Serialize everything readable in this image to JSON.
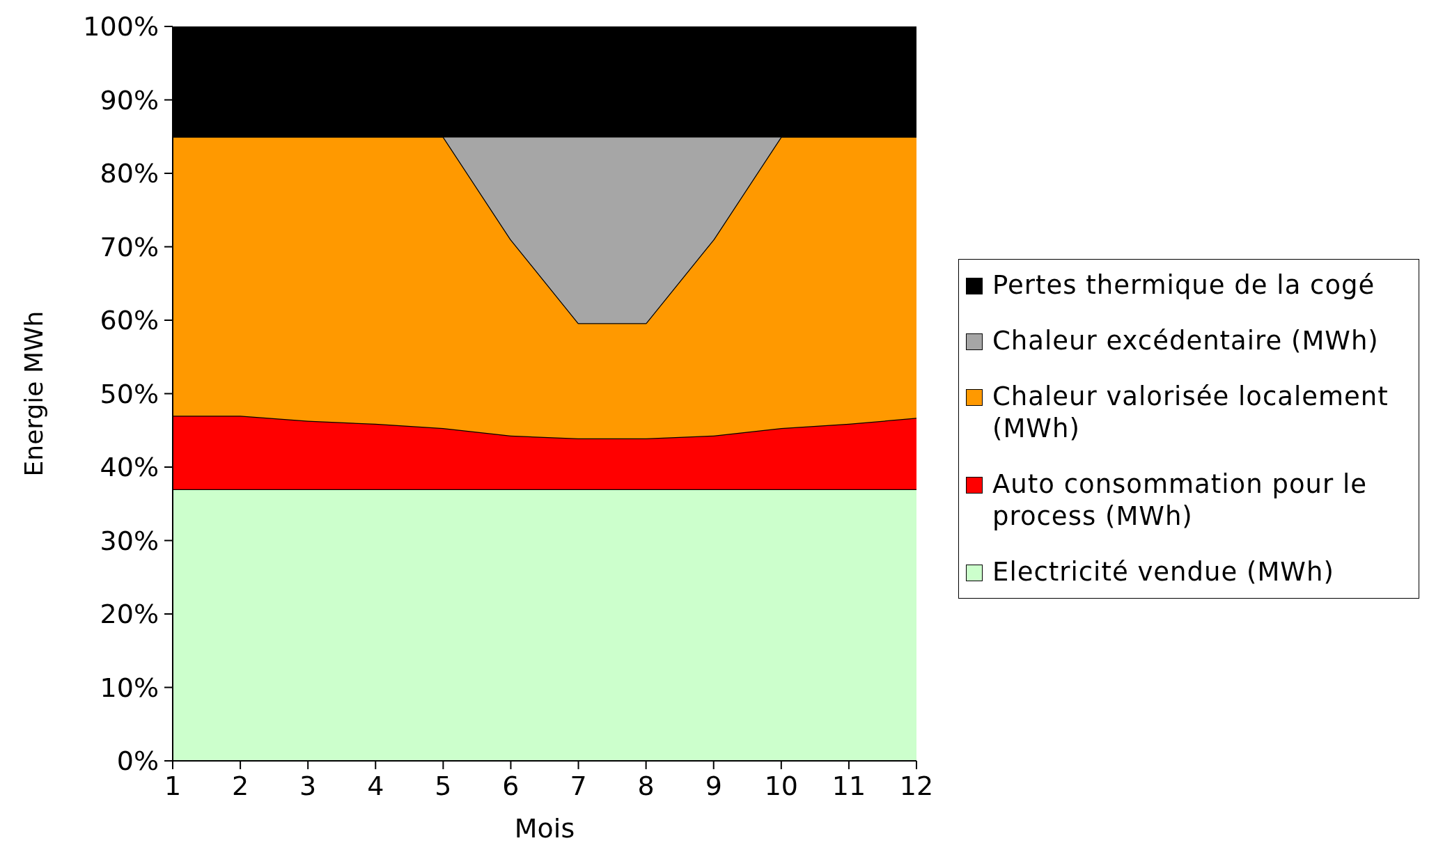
{
  "chart_data": {
    "type": "area",
    "stacked": true,
    "xlabel": "Mois",
    "ylabel": "Energie MWh",
    "x": [
      1,
      2,
      3,
      4,
      5,
      6,
      7,
      8,
      9,
      10,
      11,
      12
    ],
    "xlim": [
      1,
      12
    ],
    "xticks": [
      1,
      2,
      3,
      4,
      5,
      6,
      7,
      8,
      9,
      10,
      11,
      12
    ],
    "ylim": [
      0,
      100
    ],
    "yticks": [
      {
        "value": 0,
        "label": "0%"
      },
      {
        "value": 10,
        "label": "10%"
      },
      {
        "value": 20,
        "label": "20%"
      },
      {
        "value": 30,
        "label": "30%"
      },
      {
        "value": 40,
        "label": "40%"
      },
      {
        "value": 50,
        "label": "50%"
      },
      {
        "value": 60,
        "label": "60%"
      },
      {
        "value": 70,
        "label": "70%"
      },
      {
        "value": 80,
        "label": "80%"
      },
      {
        "value": 90,
        "label": "90%"
      },
      {
        "value": 100,
        "label": "100%"
      }
    ],
    "legend": "right",
    "series": [
      {
        "name": "Electricité vendue (MWh)",
        "color": "#ccffcc",
        "values": [
          37,
          37,
          37,
          37,
          37,
          37,
          37,
          37,
          37,
          37,
          37,
          37
        ]
      },
      {
        "name": "Auto consommation pour le process (MWh)",
        "color": "#ff0000",
        "values": [
          10,
          10,
          9.3,
          8.9,
          8.3,
          7.3,
          6.9,
          6.9,
          7.3,
          8.3,
          8.9,
          9.7
        ]
      },
      {
        "name": "Chaleur valorisée localement (MWh)",
        "color": "#ff9900",
        "values": [
          38,
          38,
          38.7,
          39.1,
          39.7,
          26.7,
          15.7,
          15.7,
          26.7,
          39.7,
          39.1,
          38.3
        ]
      },
      {
        "name": "Chaleur excédentaire (MWh)",
        "color": "#a6a6a6",
        "values": [
          0,
          0,
          0,
          0,
          0,
          14,
          25.4,
          25.4,
          14,
          0,
          0,
          0
        ]
      },
      {
        "name": "Pertes thermique de la cogé",
        "color": "#000000",
        "values": [
          15,
          15,
          15,
          15,
          15,
          15,
          15,
          15,
          15,
          15,
          15,
          15
        ]
      }
    ]
  }
}
